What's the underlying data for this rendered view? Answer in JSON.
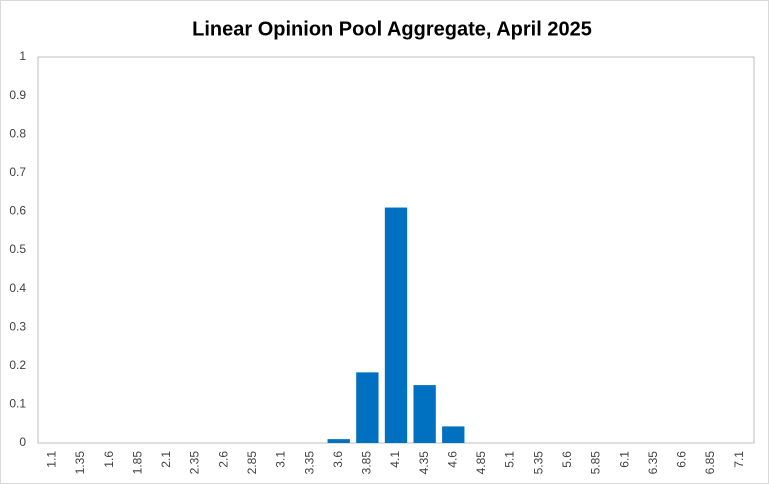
{
  "chart_data": {
    "type": "bar",
    "title": "Linear Opinion Pool Aggregate, April 2025",
    "categories": [
      "1.1",
      "1.35",
      "1.6",
      "1.85",
      "2.1",
      "2.35",
      "2.6",
      "2.85",
      "3.1",
      "3.35",
      "3.6",
      "3.85",
      "4.1",
      "4.35",
      "4.6",
      "4.85",
      "5.1",
      "5.35",
      "5.6",
      "5.85",
      "6.1",
      "6.35",
      "6.6",
      "6.85",
      "7.1"
    ],
    "values": [
      0,
      0,
      0,
      0,
      0,
      0,
      0,
      0,
      0,
      0,
      0.01,
      0.183,
      0.61,
      0.15,
      0.043,
      0,
      0,
      0,
      0,
      0,
      0,
      0,
      0,
      0,
      0
    ],
    "color": "#0070c0",
    "ylim": [
      0,
      1
    ],
    "yticks": [
      0,
      0.1,
      0.2,
      0.3,
      0.4,
      0.5,
      0.6,
      0.7,
      0.8,
      0.9,
      1
    ],
    "grid": false
  }
}
